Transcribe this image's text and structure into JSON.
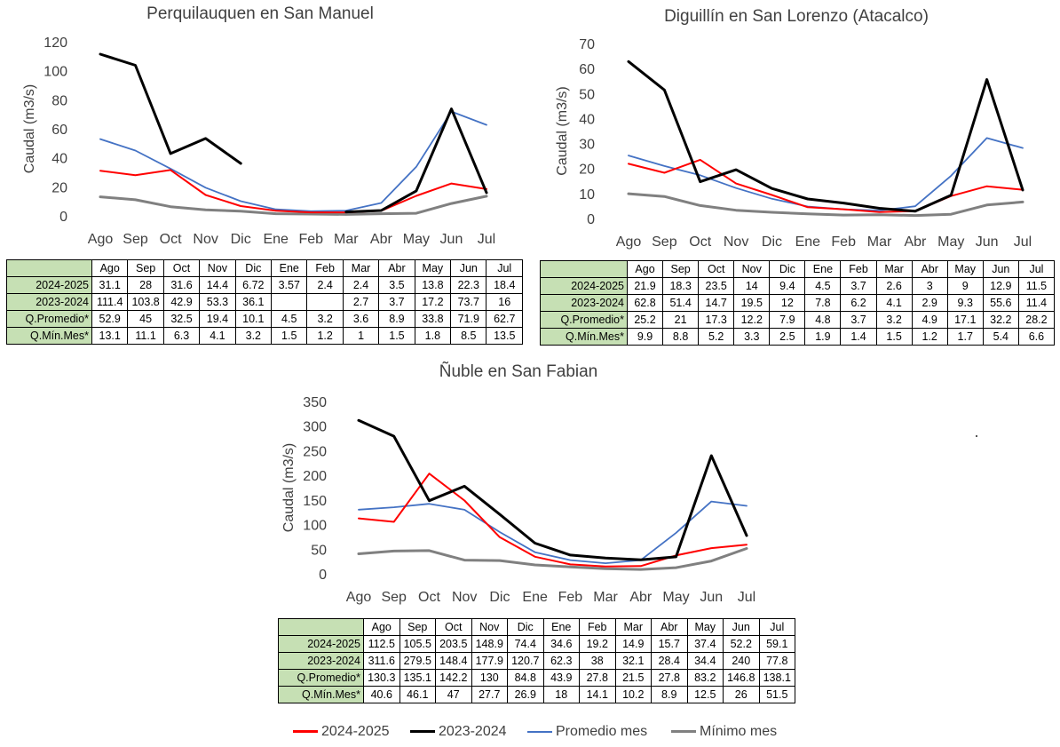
{
  "chart_data": [
    {
      "type": "line",
      "title": "Perquilauquen en San Manuel",
      "ylabel": "Caudal (m3/s)",
      "xlabel": "",
      "ylim": [
        0,
        120
      ],
      "yticks": [
        0,
        20,
        40,
        60,
        80,
        100,
        120
      ],
      "categories": [
        "Ago",
        "Sep",
        "Oct",
        "Nov",
        "Dic",
        "Ene",
        "Feb",
        "Mar",
        "Abr",
        "May",
        "Jun",
        "Jul"
      ],
      "series": [
        {
          "name": "2024-2025",
          "table_label": "2024-2025",
          "color": "#ff0000",
          "values": [
            31.1,
            28,
            31.6,
            14.4,
            6.72,
            3.57,
            2.4,
            2.4,
            3.5,
            13.8,
            22.3,
            18.4
          ]
        },
        {
          "name": "2023-2024",
          "table_label": "2023-2024",
          "color": "#000000",
          "values": [
            111.4,
            103.8,
            42.9,
            53.3,
            36.1,
            null,
            null,
            2.7,
            3.7,
            17.2,
            73.7,
            16
          ]
        },
        {
          "name": "Promedio mes",
          "table_label": "Q.Promedio*",
          "color": "#4472c4",
          "values": [
            52.9,
            45,
            32.5,
            19.4,
            10.1,
            4.5,
            3.2,
            3.6,
            8.9,
            33.8,
            71.9,
            62.7
          ]
        },
        {
          "name": "Mínimo mes",
          "table_label": "Q.Mín.Mes*",
          "color": "#808080",
          "values": [
            13.1,
            11.1,
            6.3,
            4.1,
            3.2,
            1.5,
            1.2,
            1,
            1.5,
            1.8,
            8.5,
            13.5
          ]
        }
      ],
      "table": {
        "rows": [
          {
            "label": "2024-2025",
            "cells": [
              "31.1",
              "28",
              "31.6",
              "14.4",
              "6.72",
              "3.57",
              "2.4",
              "2.4",
              "3.5",
              "13.8",
              "22.3",
              "18.4"
            ]
          },
          {
            "label": "2023-2024",
            "cells": [
              "111.4",
              "103.8",
              "42.9",
              "53.3",
              "36.1",
              "",
              "",
              "2.7",
              "3.7",
              "17.2",
              "73.7",
              "16"
            ]
          },
          {
            "label": "Q.Promedio*",
            "cells": [
              "52.9",
              "45",
              "32.5",
              "19.4",
              "10.1",
              "4.5",
              "3.2",
              "3.6",
              "8.9",
              "33.8",
              "71.9",
              "62.7"
            ]
          },
          {
            "label": "Q.Mín.Mes*",
            "cells": [
              "13.1",
              "11.1",
              "6.3",
              "4.1",
              "3.2",
              "1.5",
              "1.2",
              "1",
              "1.5",
              "1.8",
              "8.5",
              "13.5"
            ]
          }
        ]
      }
    },
    {
      "type": "line",
      "title": "Diguillín  en San Lorenzo (Atacalco)",
      "ylabel": "Caudal (m3/s)",
      "xlabel": "",
      "ylim": [
        0,
        70
      ],
      "yticks": [
        0,
        10,
        20,
        30,
        40,
        50,
        60,
        70
      ],
      "categories": [
        "Ago",
        "Sep",
        "Oct",
        "Nov",
        "Dic",
        "Ene",
        "Feb",
        "Mar",
        "Abr",
        "May",
        "Jun",
        "Jul"
      ],
      "series": [
        {
          "name": "2024-2025",
          "table_label": "2024-2025",
          "color": "#ff0000",
          "values": [
            21.9,
            18.3,
            23.5,
            14,
            9.4,
            4.5,
            3.7,
            2.6,
            3,
            9,
            12.9,
            11.5
          ]
        },
        {
          "name": "2023-2024",
          "table_label": "2023-2024",
          "color": "#000000",
          "values": [
            62.8,
            51.4,
            14.7,
            19.5,
            12,
            7.8,
            6.2,
            4.1,
            2.9,
            9.3,
            55.6,
            11.4
          ]
        },
        {
          "name": "Promedio mes",
          "table_label": "Q.Promedio*",
          "color": "#4472c4",
          "values": [
            25.2,
            21,
            17.3,
            12.2,
            7.9,
            4.8,
            3.7,
            3.2,
            4.9,
            17.1,
            32.2,
            28.2
          ]
        },
        {
          "name": "Mínimo mes",
          "table_label": "Q.Mín.Mes*",
          "color": "#808080",
          "values": [
            9.9,
            8.8,
            5.2,
            3.3,
            2.5,
            1.9,
            1.4,
            1.5,
            1.2,
            1.7,
            5.4,
            6.6
          ]
        }
      ],
      "table": {
        "rows": [
          {
            "label": "2024-2025",
            "cells": [
              "21.9",
              "18.3",
              "23.5",
              "14",
              "9.4",
              "4.5",
              "3.7",
              "2.6",
              "3",
              "9",
              "12.9",
              "11.5"
            ]
          },
          {
            "label": "2023-2024",
            "cells": [
              "62.8",
              "51.4",
              "14.7",
              "19.5",
              "12",
              "7.8",
              "6.2",
              "4.1",
              "2.9",
              "9.3",
              "55.6",
              "11.4"
            ]
          },
          {
            "label": "Q.Promedio*",
            "cells": [
              "25.2",
              "21",
              "17.3",
              "12.2",
              "7.9",
              "4.8",
              "3.7",
              "3.2",
              "4.9",
              "17.1",
              "32.2",
              "28.2"
            ]
          },
          {
            "label": "Q.Mín.Mes*",
            "cells": [
              "9.9",
              "8.8",
              "5.2",
              "3.3",
              "2.5",
              "1.9",
              "1.4",
              "1.5",
              "1.2",
              "1.7",
              "5.4",
              "6.6"
            ]
          }
        ]
      }
    },
    {
      "type": "line",
      "title": "Ñuble en San Fabian",
      "ylabel": "Caudal (m3/s)",
      "xlabel": "",
      "ylim": [
        0,
        350
      ],
      "yticks": [
        0,
        50,
        100,
        150,
        200,
        250,
        300,
        350
      ],
      "categories": [
        "Ago",
        "Sep",
        "Oct",
        "Nov",
        "Dic",
        "Ene",
        "Feb",
        "Mar",
        "Abr",
        "May",
        "Jun",
        "Jul"
      ],
      "series": [
        {
          "name": "2024-2025",
          "table_label": "2024-2025",
          "color": "#ff0000",
          "values": [
            112.5,
            105.5,
            203.5,
            148.9,
            74.4,
            34.6,
            19.2,
            14.9,
            15.7,
            37.4,
            52.2,
            59.1
          ]
        },
        {
          "name": "2023-2024",
          "table_label": "2023-2024",
          "color": "#000000",
          "values": [
            311.6,
            279.5,
            148.4,
            177.9,
            120.7,
            62.3,
            38,
            32.1,
            28.4,
            34.4,
            240,
            77.8
          ]
        },
        {
          "name": "Promedio mes",
          "table_label": "Q.Promedio*",
          "color": "#4472c4",
          "values": [
            130.3,
            135.1,
            142.2,
            130,
            84.8,
            43.9,
            27.8,
            21.5,
            27.8,
            83.2,
            146.8,
            138.1
          ]
        },
        {
          "name": "Mínimo mes",
          "table_label": "Q.Mín.Mes*",
          "color": "#808080",
          "values": [
            40.6,
            46.1,
            47,
            27.7,
            26.9,
            18,
            14.1,
            10.2,
            8.9,
            12.5,
            26,
            51.5
          ]
        }
      ],
      "table": {
        "rows": [
          {
            "label": "2024-2025",
            "cells": [
              "112.5",
              "105.5",
              "203.5",
              "148.9",
              "74.4",
              "34.6",
              "19.2",
              "14.9",
              "15.7",
              "37.4",
              "52.2",
              "59.1"
            ]
          },
          {
            "label": "2023-2024",
            "cells": [
              "311.6",
              "279.5",
              "148.4",
              "177.9",
              "120.7",
              "62.3",
              "38",
              "32.1",
              "28.4",
              "34.4",
              "240",
              "77.8"
            ]
          },
          {
            "label": "Q.Promedio*",
            "cells": [
              "130.3",
              "135.1",
              "142.2",
              "130",
              "84.8",
              "43.9",
              "27.8",
              "21.5",
              "27.8",
              "83.2",
              "146.8",
              "138.1"
            ]
          },
          {
            "label": "Q.Mín.Mes*",
            "cells": [
              "40.6",
              "46.1",
              "47",
              "27.7",
              "26.9",
              "18",
              "14.1",
              "10.2",
              "8.9",
              "12.5",
              "26",
              "51.5"
            ]
          }
        ]
      }
    }
  ],
  "legend": {
    "placement": "bottom",
    "items": [
      {
        "label": "2024-2025",
        "color": "#ff0000"
      },
      {
        "label": "2023-2024",
        "color": "#000000"
      },
      {
        "label": "Promedio mes",
        "color": "#4472c4"
      },
      {
        "label": "Mínimo mes",
        "color": "#808080"
      }
    ]
  }
}
